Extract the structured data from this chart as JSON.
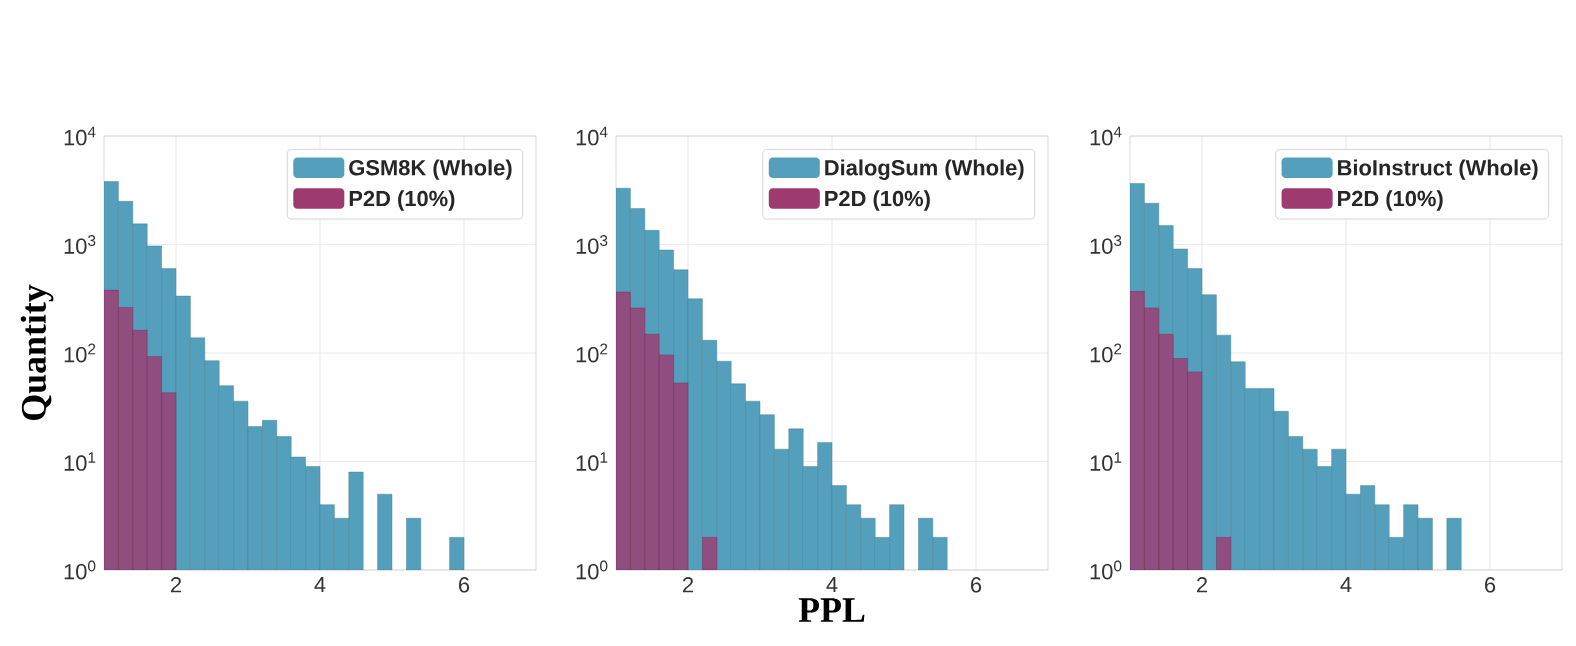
{
  "chart_data": [
    {
      "type": "histogram",
      "ylabel": "Quantity",
      "log": true,
      "grid": true,
      "legend": "top right",
      "xlim": [
        1,
        7
      ],
      "ylim": [
        1,
        10000
      ],
      "xticks": [
        2,
        4,
        6
      ],
      "yticks": [
        {
          "value": 1,
          "label": "10$^{0}$"
        },
        {
          "value": 10,
          "label": "10$^{1}$"
        },
        {
          "value": 100,
          "label": "10$^{2}$"
        },
        {
          "value": 1000,
          "label": "10$^{3}$"
        },
        {
          "value": 10000,
          "label": "10$^{4}$"
        }
      ],
      "bins": [
        1.0,
        1.2,
        1.4,
        1.6,
        1.8,
        2.0,
        2.2,
        2.4,
        2.6,
        2.8,
        3.0,
        3.2,
        3.4,
        3.6,
        3.8,
        4.0,
        4.2,
        4.4,
        4.6,
        4.8,
        5.0,
        5.2,
        5.4,
        5.6,
        5.8,
        6.0
      ],
      "series": [
        {
          "name": "GSM8K (Whole)",
          "color": "#549fbc",
          "values": [
            3800,
            2500,
            1550,
            970,
            600,
            335,
            138,
            85,
            50,
            36,
            21,
            24,
            17,
            11,
            9,
            4,
            3,
            8,
            null,
            5,
            null,
            3,
            null,
            null,
            2
          ]
        },
        {
          "name": "P2D (10%)",
          "color": "#9e3a6f",
          "values": [
            380,
            263,
            162,
            93,
            43,
            null,
            null,
            null,
            null,
            null,
            null,
            null,
            null,
            null,
            null,
            null,
            null,
            null,
            null,
            null,
            null,
            null,
            null,
            null,
            null
          ]
        }
      ]
    },
    {
      "type": "histogram",
      "xlabel": "PPL",
      "log": true,
      "grid": true,
      "legend": "top right",
      "xlim": [
        1,
        7
      ],
      "ylim": [
        1,
        10000
      ],
      "xticks": [
        2,
        4,
        6
      ],
      "yticks": [
        {
          "value": 1,
          "label": "10$^{0}$"
        },
        {
          "value": 10,
          "label": "10$^{1}$"
        },
        {
          "value": 100,
          "label": "10$^{2}$"
        },
        {
          "value": 1000,
          "label": "10$^{3}$"
        },
        {
          "value": 10000,
          "label": "10$^{4}$"
        }
      ],
      "bins": [
        1.0,
        1.2,
        1.4,
        1.6,
        1.8,
        2.0,
        2.2,
        2.4,
        2.6,
        2.8,
        3.0,
        3.2,
        3.4,
        3.6,
        3.8,
        4.0,
        4.2,
        4.4,
        4.6,
        4.8,
        5.0,
        5.2,
        5.4,
        5.6,
        5.8,
        6.0
      ],
      "series": [
        {
          "name": "DialogSum (Whole)",
          "color": "#549fbc",
          "values": [
            3300,
            2150,
            1350,
            890,
            585,
            316,
            131,
            84,
            52,
            36,
            27,
            13,
            20,
            9,
            15,
            6,
            4,
            3,
            2,
            4,
            null,
            3,
            2,
            null,
            null
          ]
        },
        {
          "name": "P2D (10%)",
          "color": "#9e3a6f",
          "values": [
            365,
            260,
            149,
            96,
            53,
            null,
            2,
            null,
            null,
            null,
            null,
            null,
            null,
            null,
            null,
            null,
            null,
            null,
            null,
            null,
            null,
            null,
            null,
            null,
            null
          ]
        }
      ]
    },
    {
      "type": "histogram",
      "log": true,
      "grid": true,
      "legend": "top right",
      "xlim": [
        1,
        7
      ],
      "ylim": [
        1,
        10000
      ],
      "xticks": [
        2,
        4,
        6
      ],
      "yticks": [
        {
          "value": 1,
          "label": "10$^{0}$"
        },
        {
          "value": 10,
          "label": "10$^{1}$"
        },
        {
          "value": 100,
          "label": "10$^{2}$"
        },
        {
          "value": 1000,
          "label": "10$^{3}$"
        },
        {
          "value": 10000,
          "label": "10$^{4}$"
        }
      ],
      "bins": [
        1.0,
        1.2,
        1.4,
        1.6,
        1.8,
        2.0,
        2.2,
        2.4,
        2.6,
        2.8,
        3.0,
        3.2,
        3.4,
        3.6,
        3.8,
        4.0,
        4.2,
        4.4,
        4.6,
        4.8,
        5.0,
        5.2,
        5.4,
        5.6,
        5.8,
        6.0
      ],
      "series": [
        {
          "name": "BioInstruct (Whole)",
          "color": "#549fbc",
          "values": [
            3650,
            2400,
            1500,
            910,
            600,
            345,
            146,
            83,
            47,
            47,
            29,
            17,
            13,
            9,
            13,
            5,
            6,
            4,
            2,
            4,
            3,
            null,
            3,
            null,
            null
          ]
        },
        {
          "name": "P2D (10%)",
          "color": "#9e3a6f",
          "values": [
            370,
            260,
            149,
            89,
            67,
            null,
            2,
            null,
            null,
            null,
            null,
            null,
            null,
            null,
            null,
            null,
            null,
            null,
            null,
            null,
            null,
            null,
            null,
            null,
            null
          ]
        }
      ]
    }
  ]
}
